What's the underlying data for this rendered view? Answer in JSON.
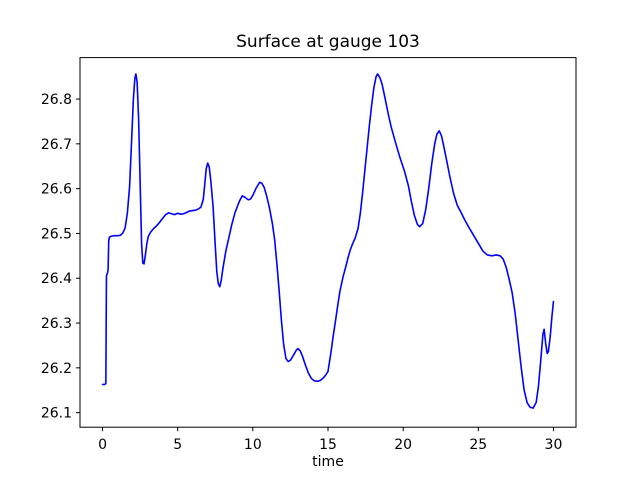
{
  "figure": {
    "background": "#ffffff",
    "spine_color": "#000000",
    "tick_color": "#000000"
  },
  "chart_data": {
    "type": "line",
    "title": "Surface at gauge 103",
    "xlabel": "time",
    "ylabel": "",
    "grid": false,
    "legend": "none",
    "xlim": [
      -1.5,
      31.5
    ],
    "ylim": [
      26.0675,
      26.8925
    ],
    "xticks": [
      0,
      5,
      10,
      15,
      20,
      25,
      30
    ],
    "xtick_labels": [
      "0",
      "5",
      "10",
      "15",
      "20",
      "25",
      "30"
    ],
    "yticks": [
      26.1,
      26.2,
      26.3,
      26.4,
      26.5,
      26.6,
      26.7,
      26.8
    ],
    "ytick_labels": [
      "26.1",
      "26.2",
      "26.3",
      "26.4",
      "26.5",
      "26.6",
      "26.7",
      "26.8"
    ],
    "series": [
      {
        "name": "surface-elevation",
        "color": "#0000ff",
        "line_width": 1.6,
        "x": [
          0.0,
          0.15,
          0.22,
          0.26,
          0.33,
          0.37,
          0.41,
          0.46,
          0.6,
          0.8,
          1.0,
          1.2,
          1.35,
          1.5,
          1.65,
          1.8,
          1.95,
          2.05,
          2.15,
          2.22,
          2.3,
          2.4,
          2.5,
          2.6,
          2.68,
          2.76,
          2.85,
          2.95,
          3.05,
          3.2,
          3.4,
          3.6,
          3.8,
          4.0,
          4.2,
          4.4,
          4.6,
          4.8,
          5.0,
          5.2,
          5.4,
          5.6,
          5.8,
          6.0,
          6.2,
          6.4,
          6.55,
          6.7,
          6.8,
          6.9,
          7.0,
          7.1,
          7.2,
          7.35,
          7.5,
          7.6,
          7.7,
          7.8,
          7.9,
          8.0,
          8.2,
          8.4,
          8.6,
          8.8,
          9.0,
          9.15,
          9.3,
          9.5,
          9.7,
          9.85,
          10.0,
          10.2,
          10.45,
          10.6,
          10.75,
          10.9,
          11.1,
          11.3,
          11.45,
          11.6,
          11.75,
          11.9,
          12.05,
          12.2,
          12.35,
          12.5,
          12.7,
          12.9,
          13.0,
          13.15,
          13.3,
          13.5,
          13.7,
          13.9,
          14.1,
          14.3,
          14.5,
          14.7,
          14.85,
          15.0,
          15.2,
          15.35,
          15.5,
          15.65,
          15.8,
          16.0,
          16.2,
          16.35,
          16.5,
          16.65,
          16.8,
          17.0,
          17.15,
          17.3,
          17.45,
          17.6,
          17.75,
          17.9,
          18.05,
          18.2,
          18.3,
          18.45,
          18.6,
          18.8,
          19.0,
          19.2,
          19.5,
          19.8,
          20.1,
          20.35,
          20.55,
          20.75,
          20.95,
          21.1,
          21.3,
          21.5,
          21.7,
          21.9,
          22.1,
          22.25,
          22.4,
          22.55,
          22.7,
          22.9,
          23.1,
          23.35,
          23.6,
          23.85,
          24.1,
          24.4,
          24.7,
          25.0,
          25.3,
          25.6,
          25.9,
          26.2,
          26.45,
          26.65,
          26.85,
          27.05,
          27.25,
          27.45,
          27.65,
          27.85,
          28.05,
          28.25,
          28.45,
          28.65,
          28.85,
          29.0,
          29.15,
          29.3,
          29.38,
          29.48,
          29.58,
          29.66,
          29.78,
          29.9,
          30.0
        ],
        "y": [
          26.163,
          26.163,
          26.165,
          26.405,
          26.412,
          26.42,
          26.483,
          26.492,
          26.494,
          26.495,
          26.495,
          26.496,
          26.501,
          26.512,
          26.545,
          26.605,
          26.72,
          26.8,
          26.846,
          26.856,
          26.838,
          26.755,
          26.615,
          26.475,
          26.434,
          26.432,
          26.452,
          26.478,
          26.494,
          26.503,
          26.511,
          26.517,
          26.525,
          26.534,
          26.542,
          26.546,
          26.544,
          26.542,
          26.545,
          26.543,
          26.544,
          26.547,
          26.55,
          26.551,
          26.552,
          26.555,
          26.559,
          26.576,
          26.61,
          26.645,
          26.657,
          26.648,
          26.618,
          26.562,
          26.472,
          26.415,
          26.388,
          26.381,
          26.396,
          26.42,
          26.46,
          26.49,
          26.52,
          26.545,
          26.563,
          26.575,
          26.584,
          26.58,
          26.575,
          26.577,
          26.585,
          26.6,
          26.614,
          26.612,
          26.603,
          26.586,
          26.558,
          26.522,
          26.486,
          26.432,
          26.372,
          26.306,
          26.252,
          26.221,
          26.214,
          26.217,
          26.228,
          26.24,
          26.243,
          26.238,
          26.226,
          26.206,
          26.188,
          26.176,
          26.171,
          26.17,
          26.172,
          26.178,
          26.184,
          26.192,
          26.235,
          26.272,
          26.305,
          26.34,
          26.372,
          26.403,
          26.428,
          26.448,
          26.465,
          26.478,
          26.489,
          26.511,
          26.545,
          26.59,
          26.64,
          26.69,
          26.74,
          26.785,
          26.825,
          26.85,
          26.856,
          26.848,
          26.833,
          26.801,
          26.768,
          26.738,
          26.702,
          26.668,
          26.638,
          26.606,
          26.571,
          26.54,
          26.52,
          26.515,
          26.522,
          26.553,
          26.6,
          26.655,
          26.7,
          26.722,
          26.729,
          26.718,
          26.695,
          26.662,
          26.628,
          26.59,
          26.563,
          26.547,
          26.53,
          26.512,
          26.495,
          26.478,
          26.461,
          26.452,
          26.45,
          26.452,
          26.45,
          26.443,
          26.425,
          26.398,
          26.368,
          26.322,
          26.262,
          26.202,
          26.15,
          26.122,
          26.112,
          26.11,
          26.123,
          26.158,
          26.215,
          26.275,
          26.286,
          26.255,
          26.232,
          26.236,
          26.268,
          26.315,
          26.348
        ]
      }
    ]
  }
}
